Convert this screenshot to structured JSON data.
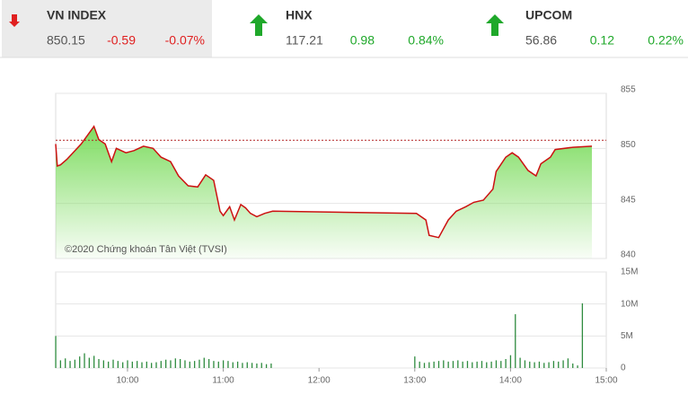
{
  "indices": [
    {
      "name": "VN INDEX",
      "value": 850.15,
      "change": -0.59,
      "percent": "-0.07%",
      "direction": "down"
    },
    {
      "name": "HNX",
      "value": 117.21,
      "change": 0.98,
      "percent": "0.84%",
      "direction": "up"
    },
    {
      "name": "UPCOM",
      "value": 56.86,
      "change": 0.12,
      "percent": "0.22%",
      "direction": "up"
    }
  ],
  "chart_data": [
    {
      "type": "area",
      "annotation": "©2020 Chứng khoán Tân Việt (TVSI)",
      "x": [
        555,
        556,
        558,
        562,
        571,
        576,
        579,
        582,
        586,
        590,
        593,
        599,
        604,
        610,
        616,
        621,
        627,
        632,
        638,
        644,
        649,
        654,
        658,
        660,
        664,
        667,
        671,
        674,
        677,
        681,
        686,
        691,
        781,
        787,
        789,
        795,
        801,
        806,
        812,
        817,
        823,
        829,
        831,
        837,
        841,
        845,
        851,
        856,
        859,
        865,
        868,
        879,
        891
      ],
      "series": [
        {
          "color": "#cc1111",
          "fill": "#7ddc5f",
          "values": [
            850.4,
            848.4,
            848.5,
            849.0,
            850.4,
            851.4,
            852.0,
            850.8,
            850.4,
            848.8,
            850.0,
            849.6,
            849.8,
            850.2,
            850.0,
            849.2,
            848.8,
            847.5,
            846.6,
            846.5,
            847.6,
            847.1,
            844.3,
            843.9,
            844.7,
            843.5,
            844.9,
            844.6,
            844.1,
            843.8,
            844.1,
            844.3,
            844.1,
            843.5,
            842.1,
            841.9,
            843.5,
            844.3,
            844.7,
            845.1,
            845.3,
            846.3,
            847.9,
            849.2,
            849.6,
            849.2,
            848.0,
            847.5,
            848.6,
            849.2,
            849.9,
            850.1,
            850.2
          ]
        }
      ],
      "reference": 850.74,
      "reference_color": "#b22222",
      "xlim": [
        555,
        900
      ],
      "ylim": [
        840,
        855
      ],
      "yticks": [
        840,
        845,
        850,
        855
      ],
      "grid": true
    },
    {
      "type": "bar",
      "x": [
        555,
        558,
        561,
        564,
        567,
        570,
        573,
        576,
        579,
        582,
        585,
        588,
        591,
        594,
        597,
        600,
        603,
        606,
        609,
        612,
        615,
        618,
        621,
        624,
        627,
        630,
        633,
        636,
        639,
        642,
        645,
        648,
        651,
        654,
        657,
        660,
        663,
        666,
        669,
        672,
        675,
        678,
        681,
        684,
        687,
        690,
        780,
        783,
        786,
        789,
        792,
        795,
        798,
        801,
        804,
        807,
        810,
        813,
        816,
        819,
        822,
        825,
        828,
        831,
        834,
        837,
        840,
        843,
        846,
        849,
        852,
        855,
        858,
        861,
        864,
        867,
        870,
        873,
        876,
        879,
        882,
        885
      ],
      "series": [
        {
          "color": "#2e8b3e",
          "values": [
            5000000,
            1200000,
            1500000,
            1100000,
            1300000,
            1800000,
            2300000,
            1600000,
            1900000,
            1400000,
            1200000,
            1000000,
            1300000,
            1100000,
            900000,
            1200000,
            1000000,
            1100000,
            900000,
            1000000,
            800000,
            900000,
            1100000,
            1300000,
            1200000,
            1500000,
            1400000,
            1200000,
            1000000,
            1100000,
            1300000,
            1600000,
            1400000,
            1100000,
            1000000,
            1200000,
            1100000,
            900000,
            1000000,
            800000,
            900000,
            800000,
            700000,
            800000,
            600000,
            700000,
            1800000,
            1000000,
            800000,
            900000,
            1000000,
            1100000,
            1200000,
            1000000,
            1100000,
            1200000,
            1000000,
            1100000,
            900000,
            1000000,
            1100000,
            900000,
            1000000,
            1200000,
            1100000,
            1400000,
            2000000,
            8400000,
            1600000,
            1200000,
            1000000,
            900000,
            1000000,
            800000,
            900000,
            1100000,
            1000000,
            1200000,
            1500000,
            700000,
            400000,
            10100000
          ]
        }
      ],
      "xlim": [
        555,
        900
      ],
      "xticks": [
        {
          "value": 600,
          "label": "10:00"
        },
        {
          "value": 660,
          "label": "11:00"
        },
        {
          "value": 720,
          "label": "12:00"
        },
        {
          "value": 780,
          "label": "13:00"
        },
        {
          "value": 840,
          "label": "14:00"
        },
        {
          "value": 900,
          "label": "15:00"
        }
      ],
      "ylim": [
        0,
        15000000
      ],
      "yticks": [
        0,
        {
          "value": 5000000,
          "label": "5M"
        },
        {
          "value": 10000000,
          "label": "10M"
        },
        {
          "value": 15000000,
          "label": "15M"
        }
      ],
      "grid": true
    }
  ]
}
